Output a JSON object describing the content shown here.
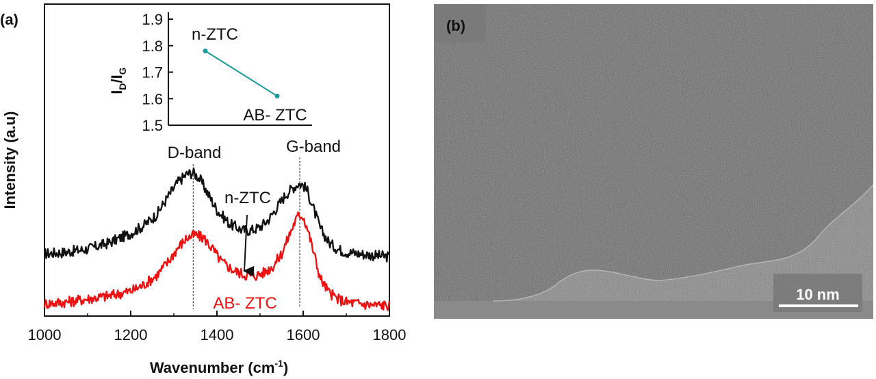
{
  "panel_a": {
    "label": "(a)"
  },
  "panel_b": {
    "label": "(b)",
    "scale_bar_label": "10 nm"
  },
  "chart_data": [
    {
      "type": "line",
      "title": "",
      "xlabel": "Wavenumber (cm-1)",
      "xlabel_main": "Wavenumber (cm",
      "xlabel_sup": "-1",
      "xlabel_close": ")",
      "ylabel": "Intensity (a.u)",
      "xlim": [
        1000,
        1800
      ],
      "ylim": [
        0,
        1
      ],
      "x_ticks": [
        1000,
        1200,
        1400,
        1600,
        1800
      ],
      "y_ticks_shown": false,
      "series": [
        {
          "name": "n-ZTC",
          "color": "#111111",
          "x": [
            1000,
            1050,
            1100,
            1150,
            1200,
            1230,
            1260,
            1290,
            1310,
            1330,
            1345,
            1360,
            1380,
            1400,
            1430,
            1460,
            1480,
            1500,
            1520,
            1540,
            1560,
            1575,
            1590,
            1600,
            1610,
            1625,
            1640,
            1660,
            1680,
            1700,
            1730,
            1760,
            1800
          ],
          "y": [
            0.2,
            0.205,
            0.215,
            0.235,
            0.265,
            0.29,
            0.325,
            0.39,
            0.43,
            0.455,
            0.46,
            0.44,
            0.39,
            0.34,
            0.295,
            0.275,
            0.275,
            0.285,
            0.31,
            0.35,
            0.39,
            0.41,
            0.425,
            0.42,
            0.4,
            0.34,
            0.28,
            0.235,
            0.215,
            0.205,
            0.2,
            0.195,
            0.19
          ]
        },
        {
          "name": "AB- ZTC",
          "color": "#ee1111",
          "x": [
            1000,
            1050,
            1100,
            1150,
            1200,
            1230,
            1260,
            1290,
            1310,
            1330,
            1350,
            1370,
            1390,
            1410,
            1440,
            1470,
            1490,
            1510,
            1530,
            1550,
            1565,
            1580,
            1590,
            1600,
            1610,
            1625,
            1640,
            1660,
            1680,
            1700,
            1730,
            1760,
            1800
          ],
          "y": [
            0.04,
            0.045,
            0.055,
            0.065,
            0.08,
            0.1,
            0.13,
            0.18,
            0.22,
            0.25,
            0.26,
            0.25,
            0.215,
            0.175,
            0.145,
            0.13,
            0.13,
            0.14,
            0.16,
            0.2,
            0.25,
            0.3,
            0.325,
            0.32,
            0.28,
            0.2,
            0.12,
            0.075,
            0.055,
            0.045,
            0.04,
            0.035,
            0.035
          ]
        }
      ],
      "annotations": [
        {
          "text": "D-band",
          "x": 1345
        },
        {
          "text": "G-band",
          "x": 1592
        },
        {
          "text": "n-ZTC",
          "x": 1465,
          "arrow": "down"
        },
        {
          "text": "AB- ZTC",
          "color": "#ee1111"
        }
      ]
    },
    {
      "type": "line",
      "title": "inset",
      "ylabel": "ID/IG",
      "ylabel_main": "I",
      "ylabel_sub1": "D",
      "ylabel_mid": "/I",
      "ylabel_sub2": "G",
      "ylim": [
        1.5,
        1.9
      ],
      "y_ticks": [
        1.5,
        1.6,
        1.7,
        1.8,
        1.9
      ],
      "categories": [
        "n-ZTC",
        "AB- ZTC"
      ],
      "values": [
        1.78,
        1.61
      ],
      "color": "#1a9a9a"
    }
  ]
}
